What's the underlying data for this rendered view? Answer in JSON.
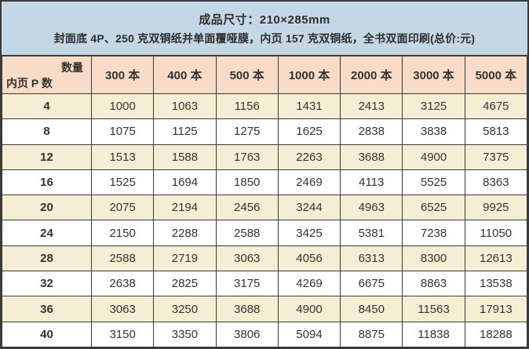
{
  "colors": {
    "top_header_bg": "#c3d7e5",
    "column_header_bg": "#f9dcc8",
    "row_cream_bg": "#f6eed4",
    "row_white_bg": "#ffffff",
    "border": "#3a3a3a",
    "text": "#333333"
  },
  "header": {
    "line1": "成品尺寸：210×285mm",
    "line2": "封面底 4P、250 克双铜纸并单面覆哑膜，内页 157 克双铜纸，全书双面印刷(总价:元)"
  },
  "table": {
    "corner": {
      "top_right": "数量",
      "bottom_left": "内页 P 数"
    },
    "columns": [
      "300 本",
      "400 本",
      "500 本",
      "1000 本",
      "2000 本",
      "3000 本",
      "5000 本"
    ],
    "rows": [
      {
        "pages": "4",
        "values": [
          "1000",
          "1063",
          "1156",
          "1431",
          "2413",
          "3125",
          "4675"
        ]
      },
      {
        "pages": "8",
        "values": [
          "1075",
          "1125",
          "1275",
          "1625",
          "2838",
          "3838",
          "5813"
        ]
      },
      {
        "pages": "12",
        "values": [
          "1513",
          "1588",
          "1763",
          "2263",
          "3688",
          "4900",
          "7375"
        ]
      },
      {
        "pages": "16",
        "values": [
          "1525",
          "1694",
          "1850",
          "2469",
          "4113",
          "5525",
          "8363"
        ]
      },
      {
        "pages": "20",
        "values": [
          "2075",
          "2194",
          "2456",
          "3244",
          "4963",
          "6525",
          "9925"
        ]
      },
      {
        "pages": "24",
        "values": [
          "2150",
          "2288",
          "2588",
          "3425",
          "5381",
          "7238",
          "11050"
        ]
      },
      {
        "pages": "28",
        "values": [
          "2588",
          "2719",
          "3063",
          "4056",
          "6313",
          "8300",
          "12613"
        ]
      },
      {
        "pages": "32",
        "values": [
          "2638",
          "2825",
          "3175",
          "4269",
          "6675",
          "8863",
          "13538"
        ]
      },
      {
        "pages": "36",
        "values": [
          "3063",
          "3250",
          "3688",
          "4900",
          "8450",
          "11563",
          "17913"
        ]
      },
      {
        "pages": "40",
        "values": [
          "3150",
          "3350",
          "3806",
          "5094",
          "8875",
          "11838",
          "18288"
        ]
      }
    ]
  }
}
